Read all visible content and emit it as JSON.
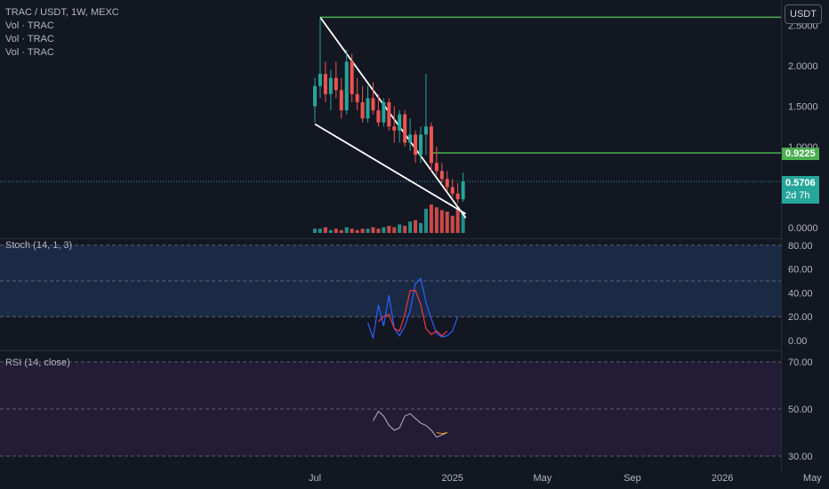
{
  "header": {
    "symbol_line": "TRAC / USDT, 1W, MEXC",
    "indicators": [
      "Vol · TRAC",
      "Vol · TRAC",
      "Vol · TRAC"
    ]
  },
  "currency_button": "USDT",
  "price_tags": {
    "level_label": "0.9225",
    "last_price": "0.5706",
    "countdown": "2d 7h"
  },
  "panes": {
    "stoch_title": "Stoch (14, 1, 3)",
    "rsi_title": "RSI (14, close)"
  },
  "colors": {
    "background": "#131722",
    "bull": "#26a69a",
    "bear": "#ef5350",
    "level_line": "#4caf50",
    "trendline": "#ffffff",
    "stoch_k": "#2962ff",
    "stoch_d": "#f23645",
    "rsi": "#b2b5be",
    "rsi_ma": "#ff9800",
    "stoch_bg": "#1a2a45",
    "rsi_bg": "#231c36"
  },
  "chart_data": {
    "type": "candlestick",
    "price_axis": {
      "ticks": [
        "0.0000",
        "0.5000",
        "1.0000",
        "1.5000",
        "2.0000",
        "2.5000"
      ],
      "range": [
        -0.05,
        2.65
      ]
    },
    "stoch_axis": {
      "ticks": [
        "0.00",
        "20.00",
        "40.00",
        "60.00",
        "80.00"
      ],
      "range": [
        -5,
        95
      ]
    },
    "rsi_axis": {
      "ticks": [
        "30.00",
        "50.00",
        "70.00"
      ],
      "range": [
        29,
        74
      ]
    },
    "time_axis": {
      "labels": [
        "Jul",
        "2025",
        "May",
        "Sep",
        "2026",
        "May"
      ],
      "label_weeks": [
        0,
        26,
        43,
        60,
        77,
        94
      ]
    },
    "candles": [
      {
        "o": 1.5,
        "h": 1.85,
        "l": 1.3,
        "c": 1.75
      },
      {
        "o": 1.75,
        "h": 2.6,
        "l": 1.6,
        "c": 1.9
      },
      {
        "o": 1.9,
        "h": 2.05,
        "l": 1.55,
        "c": 1.65
      },
      {
        "o": 1.65,
        "h": 1.95,
        "l": 1.45,
        "c": 1.85
      },
      {
        "o": 1.85,
        "h": 2.05,
        "l": 1.6,
        "c": 1.7
      },
      {
        "o": 1.7,
        "h": 1.85,
        "l": 1.35,
        "c": 1.45
      },
      {
        "o": 1.45,
        "h": 2.2,
        "l": 1.4,
        "c": 2.05
      },
      {
        "o": 2.05,
        "h": 2.15,
        "l": 1.55,
        "c": 1.65
      },
      {
        "o": 1.65,
        "h": 1.85,
        "l": 1.45,
        "c": 1.55
      },
      {
        "o": 1.55,
        "h": 1.75,
        "l": 1.3,
        "c": 1.35
      },
      {
        "o": 1.35,
        "h": 1.75,
        "l": 1.3,
        "c": 1.6
      },
      {
        "o": 1.6,
        "h": 1.8,
        "l": 1.4,
        "c": 1.45
      },
      {
        "o": 1.45,
        "h": 1.65,
        "l": 1.25,
        "c": 1.3
      },
      {
        "o": 1.3,
        "h": 1.6,
        "l": 1.25,
        "c": 1.55
      },
      {
        "o": 1.55,
        "h": 1.6,
        "l": 1.2,
        "c": 1.25
      },
      {
        "o": 1.25,
        "h": 1.5,
        "l": 1.05,
        "c": 1.2
      },
      {
        "o": 1.2,
        "h": 1.45,
        "l": 1.05,
        "c": 1.4
      },
      {
        "o": 1.4,
        "h": 1.45,
        "l": 1.0,
        "c": 1.05
      },
      {
        "o": 1.05,
        "h": 1.35,
        "l": 0.95,
        "c": 1.15
      },
      {
        "o": 1.15,
        "h": 1.2,
        "l": 0.8,
        "c": 0.9
      },
      {
        "o": 0.9,
        "h": 1.25,
        "l": 0.8,
        "c": 1.15
      },
      {
        "o": 1.15,
        "h": 1.9,
        "l": 0.9,
        "c": 1.25
      },
      {
        "o": 1.25,
        "h": 1.3,
        "l": 0.7,
        "c": 0.8
      },
      {
        "o": 0.8,
        "h": 1.0,
        "l": 0.65,
        "c": 0.7
      },
      {
        "o": 0.7,
        "h": 0.8,
        "l": 0.55,
        "c": 0.6
      },
      {
        "o": 0.6,
        "h": 0.7,
        "l": 0.45,
        "c": 0.5
      },
      {
        "o": 0.5,
        "h": 0.6,
        "l": 0.38,
        "c": 0.42
      },
      {
        "o": 0.42,
        "h": 0.55,
        "l": 0.3,
        "c": 0.35
      },
      {
        "o": 0.35,
        "h": 0.68,
        "l": 0.32,
        "c": 0.57
      }
    ],
    "volume": [
      3,
      3,
      4,
      2,
      3,
      2,
      4,
      3,
      2,
      3,
      3,
      4,
      3,
      4,
      5,
      4,
      6,
      5,
      8,
      9,
      7,
      17,
      20,
      18,
      16,
      15,
      12,
      18,
      14
    ],
    "lines": {
      "resistance_level": 2.6,
      "breakout_level": 0.9225,
      "upper_trend": [
        [
          1,
          2.6
        ],
        [
          28.5,
          0.12
        ]
      ],
      "lower_trend": [
        [
          0,
          1.28
        ],
        [
          28.5,
          0.17
        ]
      ]
    },
    "stoch": {
      "k_start_week": 10,
      "k": [
        15,
        2,
        30,
        12,
        38,
        10,
        4,
        12,
        25,
        48,
        52,
        32,
        18,
        6,
        3,
        4,
        8,
        20
      ],
      "d_start_week": 12,
      "d": [
        16,
        20,
        22,
        10,
        8,
        22,
        42,
        42,
        30,
        10,
        5,
        8,
        4,
        8
      ],
      "bands": [
        20,
        50,
        80
      ]
    },
    "rsi": {
      "start_week": 11,
      "values": [
        45,
        49,
        47,
        43,
        41,
        42,
        47,
        48,
        46,
        44,
        43,
        41,
        38,
        39,
        40
      ],
      "ma_start_week": 23,
      "ma": [
        40,
        39.5,
        40
      ],
      "bands": [
        30,
        50,
        70
      ]
    }
  }
}
